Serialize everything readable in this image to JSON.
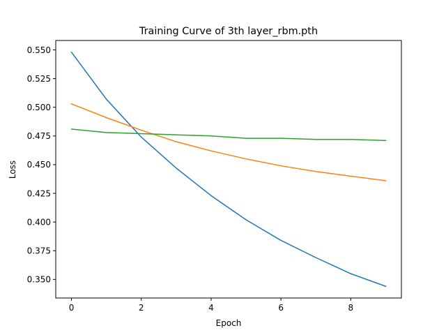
{
  "chart_data": {
    "type": "line",
    "title": "Training Curve of 3th layer_rbm.pth",
    "xlabel": "Epoch",
    "ylabel": "Loss",
    "xlim": [
      -0.45,
      9.45
    ],
    "ylim": [
      0.3338,
      0.5582
    ],
    "grid": false,
    "legend": "none",
    "x": [
      0,
      1,
      2,
      3,
      4,
      5,
      6,
      7,
      8,
      9
    ],
    "x_ticks": [
      0,
      2,
      4,
      6,
      8
    ],
    "x_tick_labels": [
      "0",
      "2",
      "4",
      "6",
      "8"
    ],
    "y_ticks": [
      0.35,
      0.375,
      0.4,
      0.425,
      0.45,
      0.475,
      0.5,
      0.525,
      0.55
    ],
    "y_tick_labels": [
      "0.350",
      "0.375",
      "0.400",
      "0.425",
      "0.450",
      "0.475",
      "0.500",
      "0.525",
      "0.550"
    ],
    "series": [
      {
        "color": "#1f77b4",
        "values": [
          0.548,
          0.507,
          0.474,
          0.447,
          0.423,
          0.402,
          0.384,
          0.369,
          0.355,
          0.344
        ]
      },
      {
        "color": "#ff7f0e",
        "values": [
          0.503,
          0.491,
          0.48,
          0.47,
          0.462,
          0.455,
          0.449,
          0.444,
          0.44,
          0.436
        ]
      },
      {
        "color": "#2ca02c",
        "values": [
          0.481,
          0.478,
          0.477,
          0.476,
          0.475,
          0.473,
          0.473,
          0.472,
          0.472,
          0.471
        ]
      }
    ]
  }
}
